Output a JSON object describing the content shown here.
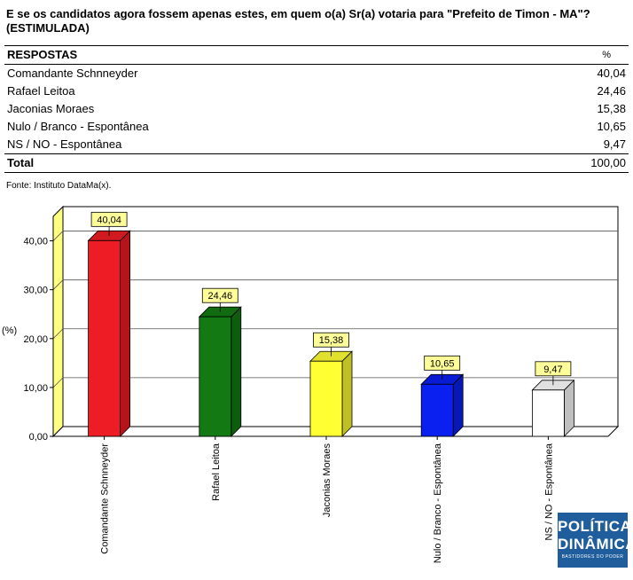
{
  "title": "E se os candidatos agora fossem apenas estes, em quem o(a) Sr(a) votaria para \"Prefeito de Timon - MA\"?  (ESTIMULADA)",
  "table": {
    "header_label": "RESPOSTAS",
    "header_value": "%",
    "rows": [
      {
        "label": "Comandante Schnneyder",
        "value": "40,04"
      },
      {
        "label": "Rafael Leitoa",
        "value": "24,46"
      },
      {
        "label": "Jaconias Moraes",
        "value": "15,38"
      },
      {
        "label": "Nulo / Branco - Espontânea",
        "value": "10,65"
      },
      {
        "label": "NS / NO - Espontânea",
        "value": "9,47"
      }
    ],
    "total_label": "Total",
    "total_value": "100,00"
  },
  "source": "Fonte: Instituto DataMa(x).",
  "logo": {
    "line1": "POLÍTICA",
    "line2": "DINÂMICA",
    "line3": "BASTIDORES DO PODER"
  },
  "chart_data": {
    "type": "bar",
    "categories": [
      "Comandante Schnneyder",
      "Rafael Leitoa",
      "Jaconias Moraes",
      "Nulo / Branco - Espontânea",
      "NS / NO - Espontânea"
    ],
    "values": [
      40.04,
      24.46,
      15.38,
      10.65,
      9.47
    ],
    "value_labels": [
      "40,04",
      "24,46",
      "15,38",
      "10,65",
      "9,47"
    ],
    "colors": [
      "#ee1c24",
      "#137a13",
      "#ffff33",
      "#0a20f0",
      "#ffffff"
    ],
    "ylabel": "(%)",
    "ylim": [
      0,
      45
    ],
    "yticks": [
      0,
      10,
      20,
      30,
      40
    ],
    "ytick_labels": [
      "0,00",
      "10,00",
      "20,00",
      "30,00",
      "40,00"
    ],
    "grid": true,
    "label_box_color": "#ffff99",
    "side_wall_color": "#ffff80"
  }
}
